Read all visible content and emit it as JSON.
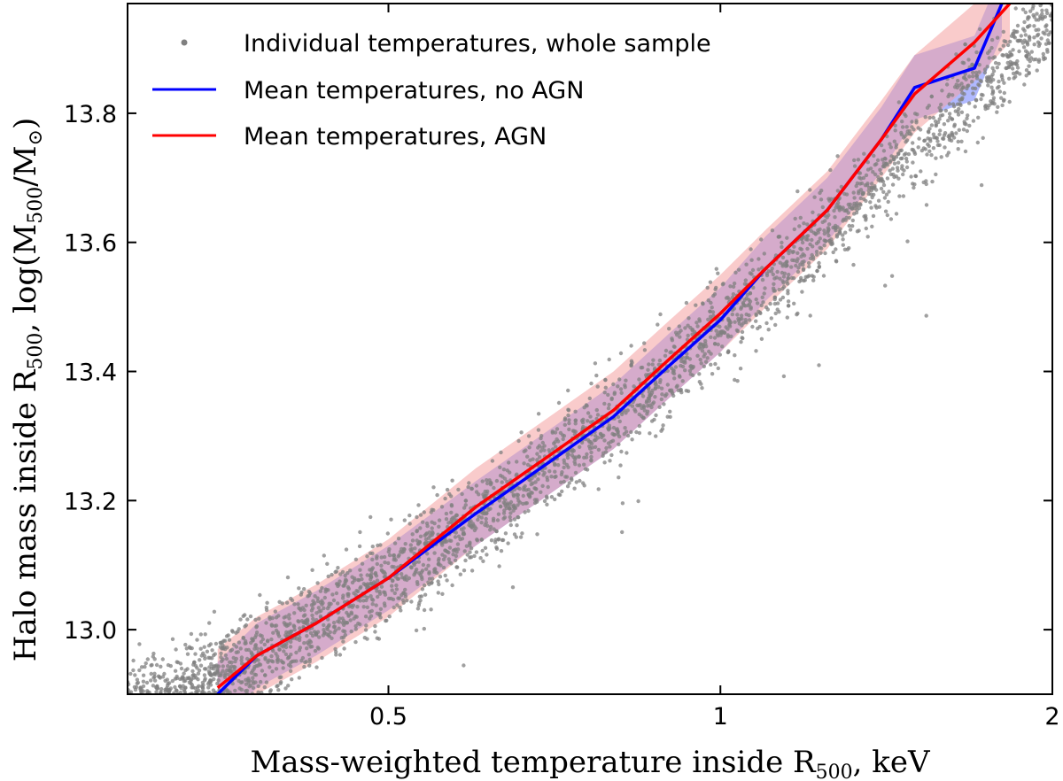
{
  "chart_data": {
    "type": "scatter",
    "xlabel": {
      "main": "Mass-weighted temperature inside R",
      "sub": "500",
      "tail": ", keV"
    },
    "ylabel": {
      "p1": "Halo mass inside R",
      "s1": "500",
      "p2": ", log(M",
      "s2": "500",
      "p3": "/M",
      "s3": "⊙",
      "p4": ")"
    },
    "x_scale": "log",
    "xlim": [
      0.29,
      2.0
    ],
    "ylim": [
      12.9,
      13.97
    ],
    "x_ticks": [
      {
        "value": 0.5,
        "label": "0.5"
      },
      {
        "value": 1,
        "label": "1"
      },
      {
        "value": 2,
        "label": "2"
      }
    ],
    "y_ticks": [
      {
        "value": 13.0,
        "label": "13.0"
      },
      {
        "value": 13.2,
        "label": "13.2"
      },
      {
        "value": 13.4,
        "label": "13.4"
      },
      {
        "value": 13.6,
        "label": "13.6"
      },
      {
        "value": 13.8,
        "label": "13.8"
      }
    ],
    "legend_position": "top-left",
    "series": [
      {
        "name": "Individual temperatures, whole sample",
        "kind": "scatter",
        "color": "#808080",
        "relation": {
          "x": [
            0.32,
            0.4,
            0.5,
            0.6,
            0.7,
            0.8,
            0.9,
            1.0,
            1.15,
            1.3,
            1.5,
            1.75,
            1.95
          ],
          "y": [
            12.9,
            12.98,
            13.08,
            13.17,
            13.25,
            13.33,
            13.4,
            13.47,
            13.56,
            13.65,
            13.75,
            13.85,
            13.93
          ]
        },
        "scatter_sigma": 0.035
      },
      {
        "name": "Mean temperatures, no AGN",
        "kind": "line",
        "color": "#0000ff",
        "band_color": "#6f7fff",
        "x": [
          0.35,
          0.38,
          0.43,
          0.5,
          0.6,
          0.7,
          0.8,
          0.9,
          1.0,
          1.1,
          1.25,
          1.4,
          1.5,
          1.7,
          1.8
        ],
        "y": [
          12.9,
          12.96,
          13.01,
          13.08,
          13.18,
          13.26,
          13.33,
          13.41,
          13.48,
          13.56,
          13.65,
          13.76,
          13.84,
          13.87,
          13.97
        ],
        "band_half_width": 0.05
      },
      {
        "name": "Mean temperatures, AGN",
        "kind": "line",
        "color": "#ff0000",
        "band_color": "#f4a0a0",
        "x": [
          0.35,
          0.38,
          0.43,
          0.5,
          0.6,
          0.7,
          0.8,
          0.9,
          1.0,
          1.1,
          1.25,
          1.4,
          1.5,
          1.7,
          1.83
        ],
        "y": [
          12.91,
          12.96,
          13.01,
          13.08,
          13.19,
          13.27,
          13.34,
          13.42,
          13.49,
          13.56,
          13.65,
          13.76,
          13.83,
          13.91,
          13.97
        ],
        "band_half_width": 0.06
      }
    ]
  }
}
